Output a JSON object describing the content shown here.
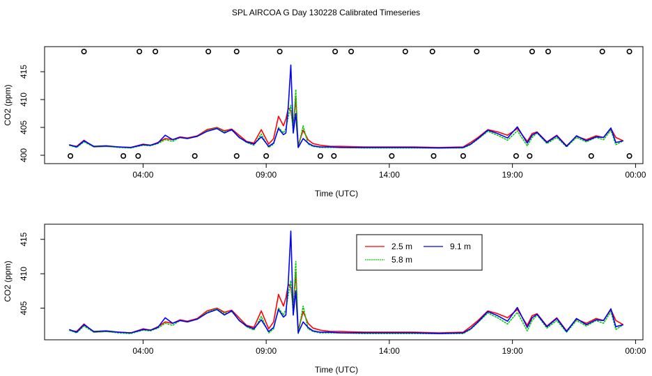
{
  "figure_title": "SPL AIRCOA G  Day 130228  Calibrated Timeseries",
  "colors": {
    "2.5 m": "#ff0000",
    "5.8 m": "#00cc00",
    "9.1 m": "#0000ff",
    "markers": "#000000"
  },
  "chart_data": [
    {
      "type": "line",
      "title": "",
      "xlabel": "Time (UTC)",
      "ylabel": "CO2 (ppm)",
      "x_unit": "hours UTC",
      "xlim": [
        0,
        24.3
      ],
      "ylim": [
        398.5,
        419.5
      ],
      "x_ticks": [
        {
          "value": 4,
          "label": "04:00"
        },
        {
          "value": 9,
          "label": "09:00"
        },
        {
          "value": 14,
          "label": "14:00"
        },
        {
          "value": 19,
          "label": "19:00"
        },
        {
          "value": 24,
          "label": "00:00"
        }
      ],
      "y_ticks": [
        {
          "value": 400,
          "label": "400"
        },
        {
          "value": 405,
          "label": "405"
        },
        {
          "value": 410,
          "label": "410"
        },
        {
          "value": 415,
          "label": "415"
        }
      ],
      "legend": null,
      "x": [
        1.0,
        1.3,
        1.6,
        2.0,
        2.5,
        3.0,
        3.5,
        4.0,
        4.3,
        4.6,
        4.9,
        5.2,
        5.5,
        5.8,
        6.2,
        6.6,
        7.0,
        7.3,
        7.6,
        7.9,
        8.2,
        8.5,
        8.8,
        9.1,
        9.3,
        9.5,
        9.7,
        9.8,
        9.9,
        10.0,
        10.1,
        10.2,
        10.3,
        10.5,
        10.7,
        10.9,
        11.2,
        11.6,
        12.0,
        13.0,
        14.0,
        15.0,
        16.0,
        17.0,
        17.3,
        17.6,
        18.0,
        18.4,
        18.8,
        19.2,
        19.6,
        19.8,
        20.0,
        20.4,
        20.8,
        21.2,
        21.6,
        22.0,
        22.4,
        22.7,
        23.0,
        23.2,
        23.5
      ],
      "series": [
        {
          "name": "2.5 m",
          "color": "#ff0000",
          "values": [
            401.8,
            401.6,
            402.7,
            401.5,
            401.6,
            401.5,
            401.4,
            402.0,
            401.8,
            402.3,
            403.0,
            402.8,
            403.3,
            403.1,
            403.5,
            404.6,
            405.0,
            404.4,
            404.7,
            403.6,
            402.5,
            402.2,
            404.6,
            402.0,
            403.0,
            407.0,
            405.3,
            406.5,
            408.5,
            408.0,
            405.0,
            410.3,
            401.8,
            404.5,
            402.8,
            402.1,
            401.8,
            401.6,
            401.6,
            401.5,
            401.5,
            401.5,
            401.4,
            401.5,
            402.3,
            403.2,
            404.6,
            404.2,
            403.6,
            404.8,
            402.5,
            403.9,
            404.2,
            402.4,
            403.6,
            401.7,
            403.4,
            402.8,
            403.5,
            403.2,
            404.8,
            403.2,
            402.6
          ]
        },
        {
          "name": "5.8 m",
          "color": "#00cc00",
          "values": [
            401.8,
            401.4,
            402.4,
            401.5,
            401.6,
            401.4,
            401.3,
            401.8,
            401.7,
            402.1,
            402.8,
            402.5,
            403.2,
            403.0,
            403.4,
            404.4,
            404.9,
            404.2,
            404.5,
            403.3,
            402.3,
            401.8,
            403.8,
            401.4,
            402.0,
            405.0,
            404.0,
            404.8,
            407.0,
            409.0,
            404.0,
            411.8,
            401.3,
            405.3,
            402.0,
            401.6,
            401.4,
            401.4,
            401.4,
            401.3,
            401.3,
            401.3,
            401.3,
            401.3,
            401.9,
            402.9,
            404.3,
            403.6,
            402.7,
            404.4,
            401.7,
            403.2,
            404.0,
            402.1,
            403.2,
            401.5,
            403.2,
            402.4,
            403.2,
            402.8,
            404.5,
            401.9,
            402.6
          ]
        },
        {
          "name": "9.1 m",
          "color": "#0000ff",
          "values": [
            401.9,
            401.5,
            402.6,
            401.6,
            401.7,
            401.5,
            401.4,
            401.9,
            401.8,
            402.2,
            403.6,
            402.8,
            403.2,
            403.0,
            403.4,
            404.3,
            404.8,
            404.0,
            404.6,
            403.2,
            402.4,
            402.0,
            403.3,
            401.6,
            402.2,
            404.8,
            403.7,
            404.0,
            409.0,
            416.2,
            404.0,
            407.5,
            401.4,
            403.0,
            402.2,
            401.7,
            401.5,
            401.5,
            401.4,
            401.4,
            401.4,
            401.4,
            401.3,
            401.4,
            402.0,
            403.0,
            404.5,
            403.9,
            403.1,
            405.1,
            402.2,
            403.6,
            404.1,
            402.3,
            403.5,
            401.6,
            403.5,
            402.6,
            403.3,
            403.2,
            404.9,
            402.3,
            402.6
          ]
        }
      ],
      "markers_top_x": [
        1.6,
        3.85,
        4.5,
        6.65,
        7.8,
        9.55,
        11.8,
        12.45,
        14.65,
        15.75,
        17.55,
        19.8,
        20.45,
        22.65,
        23.75
      ],
      "markers_bottom_x": [
        1.05,
        3.2,
        3.8,
        6.1,
        7.8,
        9.0,
        11.2,
        11.75,
        14.1,
        15.8,
        17.0,
        19.15,
        19.7,
        22.2,
        23.75
      ]
    },
    {
      "type": "line",
      "title": "",
      "xlabel": "Time (UTC)",
      "ylabel": "CO2 (ppm)",
      "x_unit": "hours UTC",
      "xlim": [
        0,
        24.3
      ],
      "ylim": [
        400.4,
        417.2
      ],
      "x_ticks": [
        {
          "value": 4,
          "label": "04:00"
        },
        {
          "value": 9,
          "label": "09:00"
        },
        {
          "value": 14,
          "label": "14:00"
        },
        {
          "value": 19,
          "label": "19:00"
        },
        {
          "value": 24,
          "label": "00:00"
        }
      ],
      "y_ticks": [
        {
          "value": 405,
          "label": "405"
        },
        {
          "value": 410,
          "label": "410"
        },
        {
          "value": 415,
          "label": "415"
        }
      ],
      "legend": {
        "placement": "top-center",
        "entries": [
          "2.5 m",
          "5.8 m",
          "9.1 m"
        ]
      },
      "series_ref": "same data as panel 1"
    }
  ]
}
